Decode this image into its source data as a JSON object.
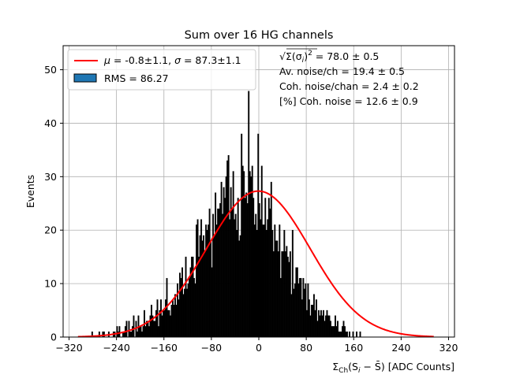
{
  "chart_data": {
    "type": "bar",
    "title": "Sum over 16 HG channels",
    "xlabel": "Σ_Ch(S_i − S̄) [ADC Counts]",
    "ylabel": "Events",
    "xlim": [
      -330,
      330
    ],
    "ylim": [
      0,
      54.5
    ],
    "x_ticks": [
      -320,
      -240,
      -160,
      -80,
      0,
      80,
      160,
      240,
      320
    ],
    "y_ticks": [
      0,
      10,
      20,
      30,
      40,
      50
    ],
    "grid": true,
    "legend_placement": "top-left",
    "bin_width": 2,
    "histogram": {
      "name": "RMS = 86.27",
      "bin_start": -310,
      "bin_width": 2,
      "counts": [
        0,
        0,
        0,
        0,
        0,
        0,
        0,
        0,
        0,
        0,
        0,
        0,
        0,
        0,
        1,
        0,
        0,
        0,
        0,
        0,
        1,
        0,
        0,
        1,
        1,
        0,
        0,
        0,
        1,
        0,
        0,
        0,
        1,
        1,
        0,
        2,
        1,
        2,
        0,
        0,
        1,
        1,
        2,
        3,
        0,
        3,
        1,
        1,
        2,
        4,
        0,
        3,
        1,
        4,
        2,
        2,
        1,
        2,
        5,
        2,
        3,
        3,
        2,
        4,
        6,
        4,
        3,
        3,
        5,
        7,
        2,
        5,
        7,
        4,
        5,
        5,
        7,
        11,
        5,
        5,
        4,
        6,
        7,
        6,
        8,
        6,
        10,
        7,
        12,
        11,
        13,
        8,
        9,
        15,
        9,
        10,
        11,
        13,
        15,
        15,
        11,
        10,
        21,
        22,
        15,
        19,
        22,
        18,
        19,
        16,
        21,
        20,
        21,
        24,
        18,
        13,
        23,
        19,
        27,
        21,
        24,
        24,
        25,
        29,
        23,
        28,
        26,
        30,
        33,
        34,
        22,
        28,
        24,
        31,
        22,
        23,
        20,
        26,
        18,
        19,
        38,
        32,
        31,
        26,
        27,
        25,
        46,
        31,
        30,
        32,
        26,
        21,
        23,
        20,
        38,
        25,
        22,
        32,
        21,
        21,
        26,
        20,
        22,
        26,
        24,
        29,
        20,
        16,
        21,
        18,
        18,
        16,
        21,
        11,
        16,
        16,
        20,
        16,
        17,
        15,
        14,
        16,
        8,
        20,
        9,
        10,
        13,
        13,
        10,
        11,
        11,
        7,
        11,
        9,
        10,
        5,
        10,
        7,
        4,
        6,
        6,
        8,
        5,
        7,
        3,
        5,
        4,
        5,
        4,
        5,
        3,
        4,
        5,
        4,
        4,
        3,
        2,
        2,
        2,
        4,
        2,
        3,
        1,
        1,
        1,
        2,
        3,
        2,
        1,
        1,
        0,
        1,
        0,
        0,
        1,
        0,
        0,
        1,
        0,
        0,
        1,
        0,
        0,
        0,
        0,
        0,
        0,
        0,
        0,
        0,
        0,
        0,
        0,
        0,
        0,
        0,
        0,
        0,
        0,
        0,
        0,
        0,
        0,
        0,
        0,
        0,
        0,
        0,
        0,
        0,
        0,
        0,
        0,
        0,
        0,
        0,
        0,
        0,
        0,
        0,
        0,
        0,
        0,
        0,
        0,
        0,
        0,
        0,
        0,
        0,
        0,
        0,
        0,
        0
      ],
      "color": "#000000"
    },
    "fit": {
      "name": "μ = -0.8±1.1, σ = 87.3±1.1",
      "color": "#ff0000",
      "amplitude": 27.3,
      "mu": -0.8,
      "sigma": 87.3,
      "x_range": [
        -305,
        295
      ]
    },
    "legend": {
      "fit_label_mu": "μ",
      "fit_label_eq1": " = -0.8±1.1, ",
      "fit_label_sigma": "σ",
      "fit_label_eq2": " = 87.3±1.1",
      "hist_label": "RMS = 86.27",
      "hist_swatch_color": "#1f77b4"
    },
    "annotations": {
      "line1_sqrt": "√",
      "line1_expr": "Σ(σ",
      "line1_sub": "i",
      "line1_close": ")",
      "line1_sup": "2",
      "line1_value": " = 78.0 ± 0.5",
      "line2": "Av. noise/ch  = 19.4 ± 0.5",
      "line3": "Coh. noise/chan  = 2.4 ± 0.2",
      "line4": "[%] Coh. noise  = 12.6 ± 0.9"
    },
    "xlabel_parts": {
      "sigma": "Σ",
      "sub": "Ch",
      "open": "(S",
      "i": "i",
      "minus": " − ",
      "sbar": "S̄",
      "close": ")",
      "units": " [ADC Counts]"
    }
  }
}
